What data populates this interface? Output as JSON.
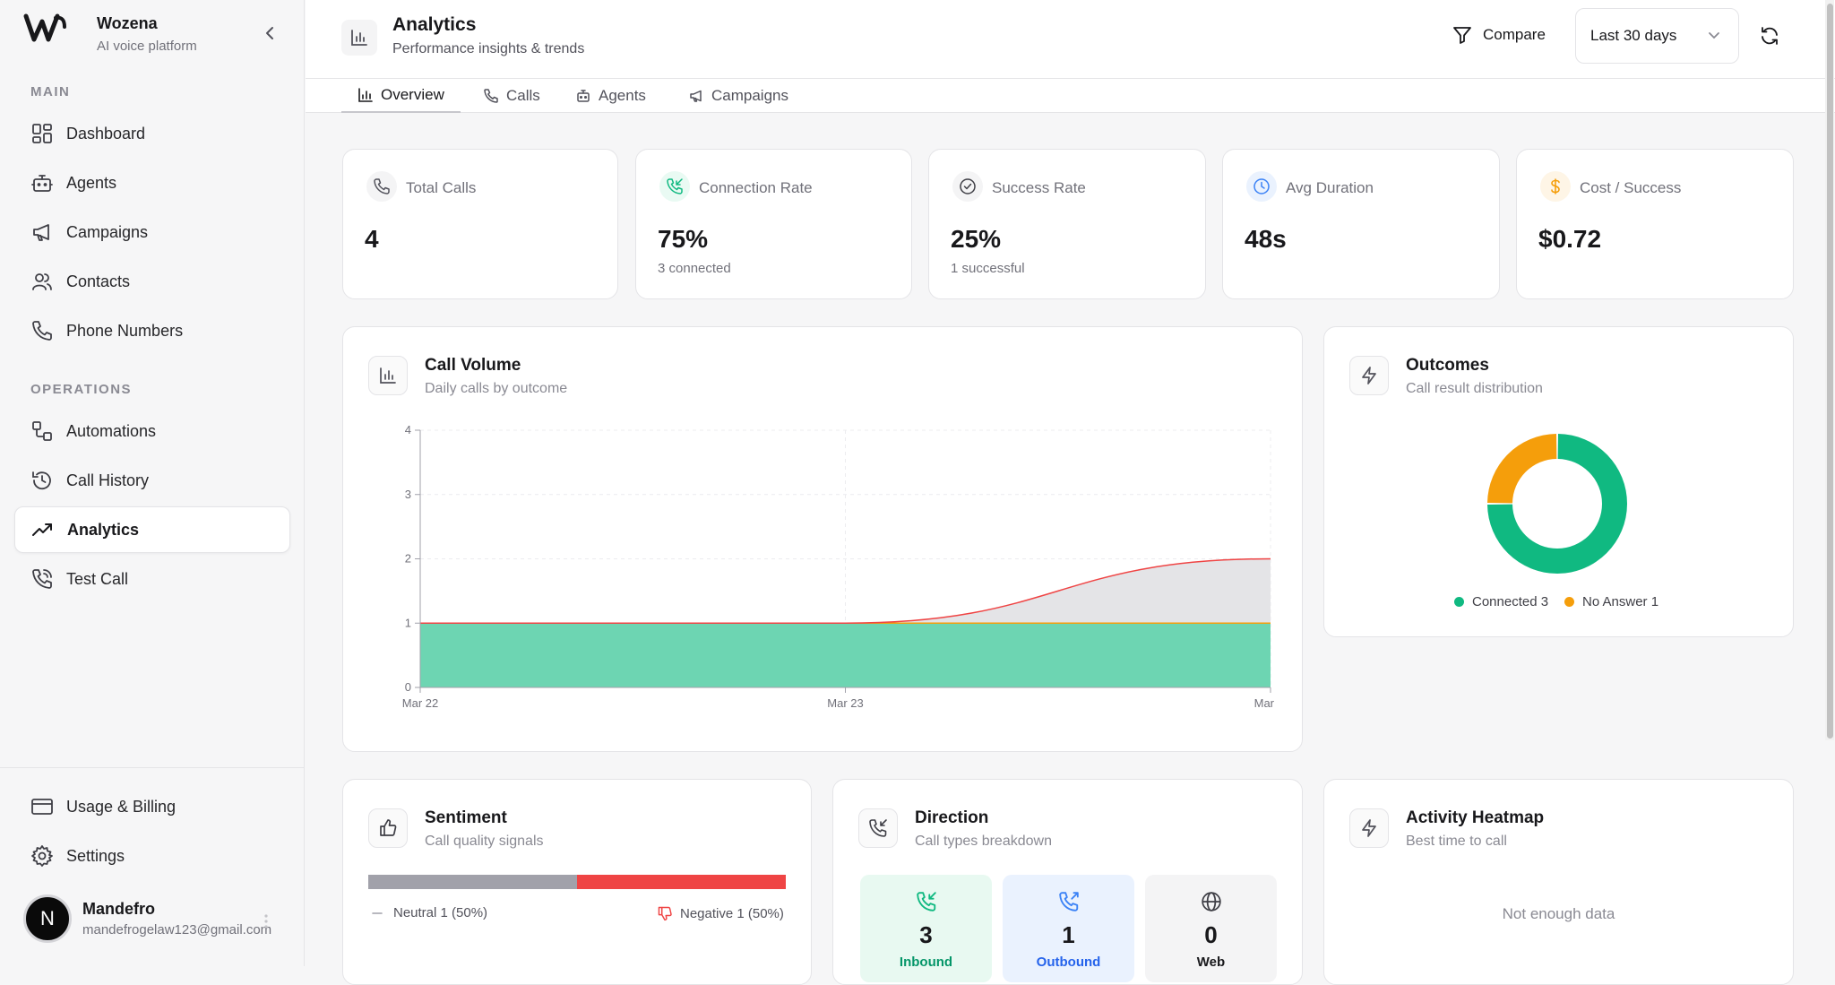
{
  "brand": {
    "name": "Wozena",
    "subtitle": "AI voice platform"
  },
  "sidebar": {
    "section_main": "MAIN",
    "section_operations": "OPERATIONS",
    "main_items": [
      {
        "label": "Dashboard",
        "icon": "dashboard-icon"
      },
      {
        "label": "Agents",
        "icon": "bot-icon"
      },
      {
        "label": "Campaigns",
        "icon": "megaphone-icon"
      },
      {
        "label": "Contacts",
        "icon": "users-icon"
      },
      {
        "label": "Phone Numbers",
        "icon": "phone-icon"
      }
    ],
    "operations_items": [
      {
        "label": "Automations",
        "icon": "workflow-icon"
      },
      {
        "label": "Call History",
        "icon": "history-icon"
      },
      {
        "label": "Analytics",
        "icon": "trending-up-icon",
        "active": true
      },
      {
        "label": "Test Call",
        "icon": "phone-call-icon"
      }
    ],
    "bottom_items": [
      {
        "label": "Usage & Billing",
        "icon": "credit-card-icon"
      },
      {
        "label": "Settings",
        "icon": "gear-icon"
      }
    ],
    "user": {
      "initial": "N",
      "name": "Mandefro",
      "email": "mandefrogelaw123@gmail.com"
    }
  },
  "header": {
    "title": "Analytics",
    "subtitle": "Performance insights & trends",
    "compare_label": "Compare",
    "date_range": "Last 30 days"
  },
  "tabs": [
    {
      "label": "Overview",
      "active": true
    },
    {
      "label": "Calls"
    },
    {
      "label": "Agents"
    },
    {
      "label": "Campaigns"
    }
  ],
  "stats": [
    {
      "label": "Total Calls",
      "value": "4",
      "sub": "",
      "icon": "phone-icon",
      "color": "#52525b",
      "bg": "#f4f4f5"
    },
    {
      "label": "Connection Rate",
      "value": "75%",
      "sub": "3 connected",
      "icon": "phone-incoming-icon",
      "color": "#10b981",
      "bg": "#e9faf3"
    },
    {
      "label": "Success Rate",
      "value": "25%",
      "sub": "1 successful",
      "icon": "check-circle-icon",
      "color": "#3f3f46",
      "bg": "#f4f4f5"
    },
    {
      "label": "Avg Duration",
      "value": "48s",
      "sub": "",
      "icon": "clock-icon",
      "color": "#3b82f6",
      "bg": "#eaf2fe"
    },
    {
      "label": "Cost / Success",
      "value": "$0.72",
      "sub": "",
      "icon": "dollar-icon",
      "color": "#f59e0b",
      "bg": "#fef5e6"
    }
  ],
  "call_volume": {
    "title": "Call Volume",
    "subtitle": "Daily calls by outcome"
  },
  "outcomes": {
    "title": "Outcomes",
    "subtitle": "Call result distribution",
    "legend": [
      {
        "label": "Connected 3",
        "color": "#10b981"
      },
      {
        "label": "No Answer 1",
        "color": "#f59e0b"
      }
    ]
  },
  "sentiment": {
    "title": "Sentiment",
    "subtitle": "Call quality signals",
    "neutral_label": "Neutral 1 (50%)",
    "negative_label": "Negative 1 (50%)",
    "neutral_fraction": 0.5,
    "negative_fraction": 0.5,
    "neutral_color": "#a1a1aa",
    "negative_color": "#ef4444"
  },
  "direction": {
    "title": "Direction",
    "subtitle": "Call types breakdown",
    "items": [
      {
        "value": "3",
        "label": "Inbound",
        "color": "#059669",
        "bg": "#e8f9f1"
      },
      {
        "value": "1",
        "label": "Outbound",
        "color": "#2563eb",
        "bg": "#eaf2fe"
      },
      {
        "value": "0",
        "label": "Web",
        "color": "#18181b",
        "bg": "#f4f4f5"
      }
    ]
  },
  "heatmap": {
    "title": "Activity Heatmap",
    "subtitle": "Best time to call",
    "empty": "Not enough data"
  },
  "chart_data": [
    {
      "type": "area",
      "x": [
        "Mar 22",
        "Mar 23",
        "Mar"
      ],
      "ylim": [
        0,
        4
      ],
      "yticks": [
        "0",
        "1",
        "2",
        "3",
        "4"
      ],
      "grid": true,
      "stacked": true,
      "series": [
        {
          "values": [
            1,
            1,
            1
          ],
          "color": "#6dd5b2",
          "line": "#10b981"
        },
        {
          "values": [
            0,
            0,
            0
          ],
          "color": "#f59e0b",
          "line": "#f59e0b"
        },
        {
          "values": [
            0,
            0,
            1
          ],
          "color": "#e4e4e7",
          "line": "#ef4444"
        }
      ]
    },
    {
      "type": "pie",
      "donut": true,
      "labels": [
        "Connected",
        "No Answer"
      ],
      "values": [
        3,
        1
      ],
      "colors": [
        "#10b981",
        "#f59e0b"
      ]
    }
  ]
}
